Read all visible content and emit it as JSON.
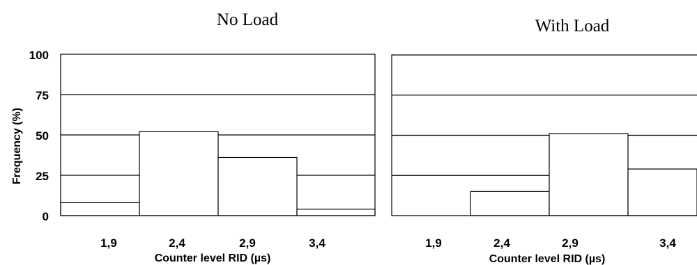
{
  "chart_data": [
    {
      "type": "bar",
      "title": "No Load",
      "xlabel": "Counter level RID (µs)",
      "ylabel": "Frequency (%)",
      "categories": [
        "1,9",
        "2,4",
        "2,9",
        "3,4"
      ],
      "values": [
        8,
        52,
        36,
        4
      ],
      "ylim": [
        0,
        100
      ],
      "yticks": [
        "0",
        "25",
        "50",
        "75",
        "100"
      ],
      "grid": true
    },
    {
      "type": "bar",
      "title": "With Load",
      "xlabel": "Counter level RID (µs)",
      "ylabel": "",
      "categories": [
        "1,9",
        "2,4",
        "2,9",
        "3,4"
      ],
      "values": [
        0,
        15,
        51,
        29
      ],
      "ylim": [
        0,
        100
      ],
      "yticks": [],
      "grid": true
    }
  ]
}
